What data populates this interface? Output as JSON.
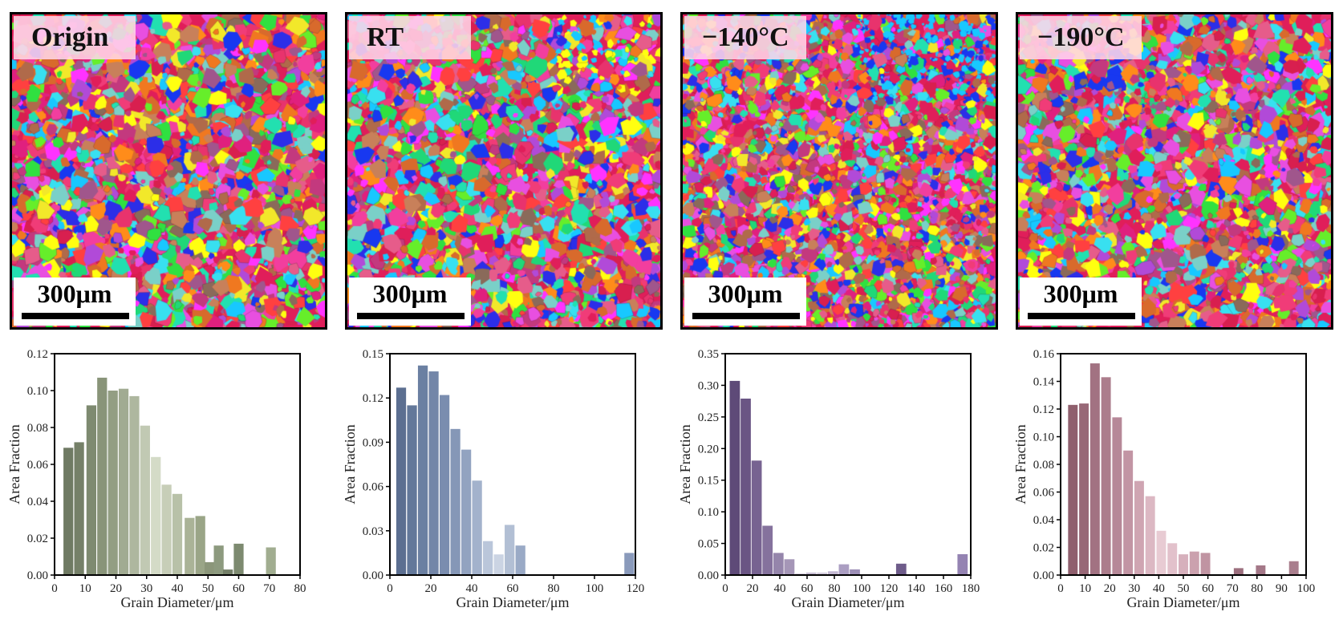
{
  "panels": [
    {
      "label": "Origin",
      "scale": "300μm",
      "palette": [
        "#e01e5a",
        "#e8336d",
        "#d81f4f",
        "#f03c78",
        "#e0207e",
        "#f23e9e",
        "#c3397e",
        "#ff33ff",
        "#e84fe0",
        "#b14ad8",
        "#1838f0",
        "#2c2ee8",
        "#18c8ff",
        "#38e0f0",
        "#22e0b0",
        "#20d878",
        "#30e040",
        "#66ee2a",
        "#ffff10",
        "#f2e82a",
        "#ff8c1a",
        "#f07820",
        "#d86a2c",
        "#c8805a",
        "#b06a4a",
        "#8a6a5a",
        "#a0568c",
        "#7ad0c8",
        "#ff4040",
        "#e65c8a"
      ],
      "density": 1.0,
      "cyanTop": 0
    },
    {
      "label": "RT",
      "scale": "300μm",
      "palette": [
        "#e01e5a",
        "#e8336d",
        "#d81f4f",
        "#f03c78",
        "#e0207e",
        "#f23e9e",
        "#c3397e",
        "#ff33ff",
        "#e84fe0",
        "#b14ad8",
        "#1838f0",
        "#2c2ee8",
        "#18c8ff",
        "#38e0f0",
        "#22e0b0",
        "#20d878",
        "#30e040",
        "#66ee2a",
        "#ffff10",
        "#f2e82a",
        "#ff8c1a",
        "#f07820",
        "#d86a2c",
        "#c8805a",
        "#b06a4a",
        "#8a6a5a",
        "#a0568c",
        "#7ad0c8",
        "#ff4040",
        "#e65c8a"
      ],
      "density": 1.05,
      "cyanTop": 1
    },
    {
      "label": "−140°C",
      "scale": "300μm",
      "palette": [
        "#e01e5a",
        "#e8336d",
        "#d81f4f",
        "#f03c78",
        "#e0207e",
        "#f23e9e",
        "#c3397e",
        "#ff33ff",
        "#e84fe0",
        "#b14ad8",
        "#1838f0",
        "#2c2ee8",
        "#18c8ff",
        "#38e0f0",
        "#22e0b0",
        "#20d878",
        "#30e040",
        "#66ee2a",
        "#ffff10",
        "#f2e82a",
        "#ff8c1a",
        "#f07820",
        "#d86a2c",
        "#c8805a",
        "#b06a4a",
        "#8a6a5a",
        "#a0568c",
        "#7ad0c8",
        "#ff4040",
        "#e65c8a"
      ],
      "density": 1.8,
      "cyanTop": 2
    },
    {
      "label": "−190°C",
      "scale": "300μm",
      "palette": [
        "#e01e5a",
        "#e8336d",
        "#d81f4f",
        "#f03c78",
        "#e0207e",
        "#f23e9e",
        "#c3397e",
        "#ff33ff",
        "#e84fe0",
        "#b14ad8",
        "#1838f0",
        "#2c2ee8",
        "#18c8ff",
        "#38e0f0",
        "#22e0b0",
        "#20d878",
        "#30e040",
        "#66ee2a",
        "#ffff10",
        "#f2e82a",
        "#ff8c1a",
        "#f07820",
        "#d86a2c",
        "#c8805a",
        "#b06a4a",
        "#8a6a5a",
        "#a0568c",
        "#7ad0c8",
        "#ff4040",
        "#e65c8a"
      ],
      "density": 1.15,
      "cyanTop": 0
    }
  ],
  "chart_data": [
    {
      "type": "bar",
      "name": "Origin",
      "xlabel": "Grain Diameter/μm",
      "ylabel": "Area Fraction",
      "xlim": [
        0,
        80
      ],
      "ylim": [
        0,
        0.12
      ],
      "xticks": [
        0,
        10,
        20,
        30,
        40,
        50,
        60,
        70,
        80
      ],
      "xtick_labels": [
        "0",
        "10",
        "20",
        "30",
        "40",
        "50",
        "60",
        "70",
        "80"
      ],
      "yticks": [
        0,
        0.02,
        0.04,
        0.06,
        0.08,
        0.1,
        0.12
      ],
      "ytick_labels": [
        "0.00",
        "0.02",
        "0.04",
        "0.06",
        "0.08",
        "0.10",
        "0.12"
      ],
      "bin_width": 3.2,
      "x": [
        4.5,
        8,
        12,
        15.5,
        19,
        22.5,
        26,
        29.5,
        33,
        36.5,
        40,
        44,
        47.5,
        50.5,
        53.5,
        56.5,
        60,
        70.5
      ],
      "values": [
        0.069,
        0.072,
        0.092,
        0.107,
        0.1,
        0.101,
        0.097,
        0.081,
        0.064,
        0.049,
        0.044,
        0.031,
        0.032,
        0.007,
        0.016,
        0.003,
        0.017,
        0.015
      ],
      "colors": [
        "#6f7a63",
        "#758068",
        "#7e8a70",
        "#899479",
        "#939e83",
        "#a1ab92",
        "#aeb79f",
        "#c1c9b3",
        "#d4dbc7",
        "#c7ceb8",
        "#b8c1a8",
        "#aab397",
        "#9aa587",
        "#8b967a",
        "#8d9a7f",
        "#747f68",
        "#7d8a70",
        "#a1ad90"
      ]
    },
    {
      "type": "bar",
      "name": "RT",
      "xlabel": "Grain Diameter/μm",
      "ylabel": "Area Fraction",
      "xlim": [
        0,
        120
      ],
      "ylim": [
        0,
        0.15
      ],
      "xticks": [
        0,
        20,
        40,
        60,
        80,
        100,
        120
      ],
      "xtick_labels": [
        "0",
        "20",
        "40",
        "60",
        "80",
        "100",
        "120"
      ],
      "yticks": [
        0,
        0.03,
        0.06,
        0.09,
        0.12,
        0.15
      ],
      "ytick_labels": [
        "0.00",
        "0.03",
        "0.06",
        "0.09",
        "0.12",
        "0.15"
      ],
      "bin_width": 4.8,
      "x": [
        5.5,
        10.8,
        16.1,
        21.4,
        26.7,
        32,
        37.3,
        42.6,
        47.9,
        53.2,
        58.5,
        63.8,
        69.1,
        117
      ],
      "values": [
        0.127,
        0.115,
        0.142,
        0.138,
        0.122,
        0.099,
        0.085,
        0.064,
        0.023,
        0.014,
        0.034,
        0.02,
        0.0,
        0.015
      ],
      "colors": [
        "#5c6f91",
        "#63789a",
        "#6b80a2",
        "#7386a8",
        "#7a8daf",
        "#8597b7",
        "#92a3c0",
        "#a3b2cc",
        "#bac6da",
        "#cbd4e3",
        "#b2bfd4",
        "#9aaac6",
        "#8e9fbd",
        "#8a9abb"
      ]
    },
    {
      "type": "bar",
      "name": "−140°C",
      "xlabel": "Grain Diameter/μm",
      "ylabel": "Area Fraction",
      "xlim": [
        0,
        180
      ],
      "ylim": [
        0,
        0.35
      ],
      "xticks": [
        0,
        20,
        40,
        60,
        80,
        100,
        120,
        140,
        160,
        180
      ],
      "xtick_labels": [
        "0",
        "20",
        "40",
        "60",
        "80",
        "100",
        "120",
        "140",
        "160",
        "180"
      ],
      "yticks": [
        0,
        0.05,
        0.1,
        0.15,
        0.2,
        0.25,
        0.3,
        0.35
      ],
      "ytick_labels": [
        "0.00",
        "0.05",
        "0.10",
        "0.15",
        "0.20",
        "0.25",
        "0.30",
        "0.35"
      ],
      "bin_width": 7.5,
      "x": [
        7,
        15,
        23,
        31,
        39,
        47,
        55,
        63,
        71,
        79,
        87,
        95,
        129,
        174
      ],
      "values": [
        0.307,
        0.279,
        0.181,
        0.078,
        0.035,
        0.025,
        0.002,
        0.004,
        0.004,
        0.006,
        0.017,
        0.009,
        0.018,
        0.033
      ],
      "colors": [
        "#5e4a78",
        "#6a5584",
        "#776391",
        "#85729d",
        "#9585ab",
        "#a596b7",
        "#b7abc6",
        "#c8bed4",
        "#d3cbdd",
        "#c2b7d1",
        "#ab9ec2",
        "#9d8fb7",
        "#6e5c8a",
        "#9483b2"
      ]
    },
    {
      "type": "bar",
      "name": "−190°C",
      "xlabel": "Grain Diameter/μm",
      "ylabel": "Area Fraction",
      "xlim": [
        0,
        100
      ],
      "ylim": [
        0,
        0.16
      ],
      "xticks": [
        0,
        10,
        20,
        30,
        40,
        50,
        60,
        70,
        80,
        90,
        100
      ],
      "xtick_labels": [
        "0",
        "10",
        "20",
        "30",
        "40",
        "50",
        "60",
        "70",
        "80",
        "90",
        "100"
      ],
      "yticks": [
        0,
        0.02,
        0.04,
        0.06,
        0.08,
        0.1,
        0.12,
        0.14,
        0.16
      ],
      "ytick_labels": [
        "0.00",
        "0.02",
        "0.04",
        "0.06",
        "0.08",
        "0.10",
        "0.12",
        "0.14",
        "0.16"
      ],
      "bin_width": 3.9,
      "x": [
        5,
        9.5,
        14,
        18.5,
        23,
        27.5,
        32,
        36.5,
        41,
        45.5,
        50,
        54.5,
        59,
        63.5,
        72.5,
        81.5,
        95
      ],
      "values": [
        0.123,
        0.124,
        0.153,
        0.143,
        0.114,
        0.09,
        0.068,
        0.057,
        0.032,
        0.023,
        0.015,
        0.017,
        0.016,
        0.0,
        0.005,
        0.007,
        0.01
      ],
      "colors": [
        "#8f5f6d",
        "#986877",
        "#a27282",
        "#ac7d8c",
        "#b68898",
        "#c295a4",
        "#cfa5b2",
        "#dcb8c3",
        "#e8cbd3",
        "#e2c1cb",
        "#d6b0bc",
        "#cba1ae",
        "#c094a2",
        "#b58896",
        "#9c6f7e",
        "#a47888",
        "#a97e8d"
      ]
    }
  ]
}
